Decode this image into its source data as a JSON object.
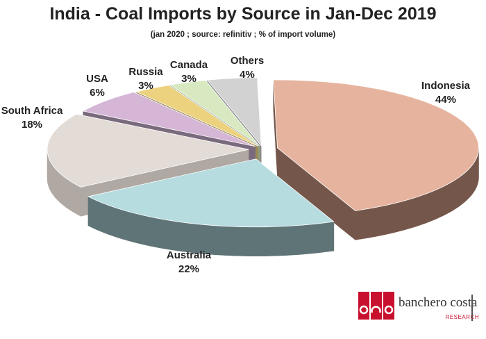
{
  "header": {
    "title": "India - Coal Imports by Source in Jan-Dec 2019",
    "subtitle": "(jan 2020 ; source: refinitiv ; % of import volume)"
  },
  "chart_data": {
    "type": "pie",
    "title": "India - Coal Imports by Source in Jan-Dec 2019",
    "subtitle": "(jan 2020 ; source: refinitiv ; % of import volume)",
    "unit": "%",
    "exploded": true,
    "three_d": true,
    "slices": [
      {
        "name": "Indonesia",
        "value": 44,
        "label": "44%",
        "color": "#e6b49e",
        "side": "#75564a"
      },
      {
        "name": "Australia",
        "value": 22,
        "label": "22%",
        "color": "#b6dcdf",
        "side": "#5f7477"
      },
      {
        "name": "South Africa",
        "value": 18,
        "label": "18%",
        "color": "#e3dbd5",
        "side": "#b0a9a3"
      },
      {
        "name": "USA",
        "value": 6,
        "label": "6%",
        "color": "#d5b6d6",
        "side": "#7a6a7d"
      },
      {
        "name": "Russia",
        "value": 3,
        "label": "3%",
        "color": "#ecd27e",
        "side": "#9b8a55"
      },
      {
        "name": "Canada",
        "value": 3,
        "label": "3%",
        "color": "#d8e9c2",
        "side": "#8f9d80"
      },
      {
        "name": "Others",
        "value": 4,
        "label": "4%",
        "color": "#d2d2d2",
        "side": "#8c8c8c"
      }
    ]
  },
  "logo": {
    "name": "banchero costa",
    "sub": "RESEARCH",
    "brand_color": "#c8102e"
  }
}
